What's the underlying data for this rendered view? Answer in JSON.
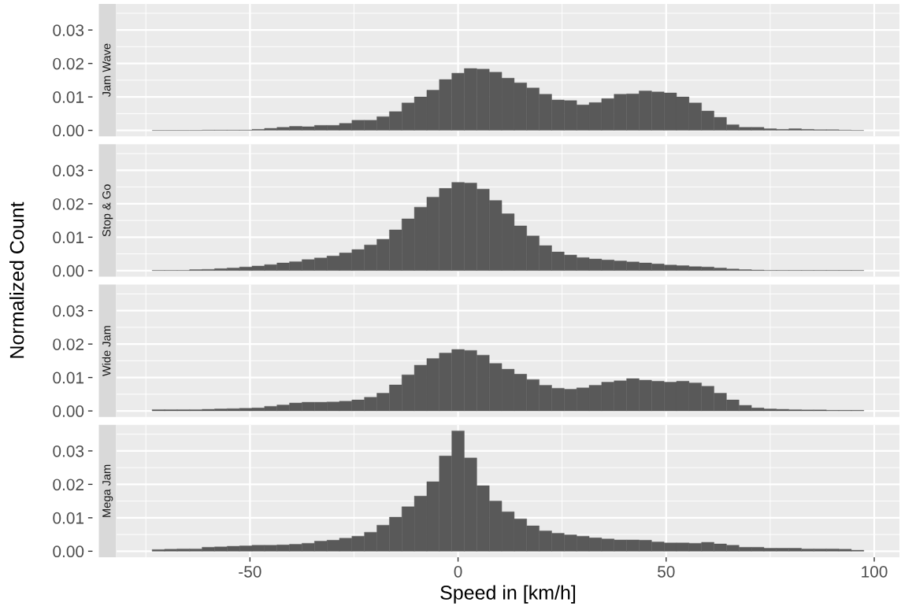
{
  "chart_data": [
    {
      "type": "histogram",
      "title": "Jam Wave",
      "ylabel": "Normalized Count",
      "color": "#595959",
      "grid": true,
      "tick_labels": "y",
      "bins": [
        -73.5,
        -70.5,
        -67.5,
        -64.5,
        -61.5,
        -58.5,
        -55.5,
        -52.5,
        -49.5,
        -46.5,
        -43.5,
        -40.5,
        -37.5,
        -34.5,
        -31.5,
        -28.5,
        -25.5,
        -22.5,
        -19.5,
        -16.5,
        -13.5,
        -10.5,
        -7.5,
        -4.5,
        -1.5,
        1.5,
        4.5,
        7.5,
        10.5,
        13.5,
        16.5,
        19.5,
        22.5,
        25.5,
        28.5,
        31.5,
        34.5,
        37.5,
        40.5,
        43.5,
        46.5,
        49.5,
        52.5,
        55.5,
        58.5,
        61.5,
        64.5,
        67.5,
        70.5,
        73.5,
        76.5,
        79.5,
        82.5,
        85.5,
        88.5,
        91.5,
        94.5,
        97.5
      ],
      "values": [
        0,
        0,
        0,
        0,
        0.0001,
        0.0001,
        0.0001,
        0.0001,
        0.0003,
        0.0006,
        0.0009,
        0.0012,
        0.0011,
        0.0015,
        0.0015,
        0.0021,
        0.003,
        0.003,
        0.0041,
        0.0056,
        0.0082,
        0.01,
        0.012,
        0.0152,
        0.0171,
        0.0185,
        0.0183,
        0.0174,
        0.0156,
        0.0142,
        0.0127,
        0.0108,
        0.0091,
        0.0089,
        0.0076,
        0.0083,
        0.0095,
        0.0108,
        0.0109,
        0.0118,
        0.0115,
        0.0112,
        0.01,
        0.0082,
        0.0058,
        0.0039,
        0.0017,
        0.0009,
        0.0009,
        0.0005,
        0.0003,
        0.0005,
        0.0003,
        0.0002,
        0.0002,
        0.0001,
        0
      ],
      "xlim": [
        -82.05,
        106.05
      ],
      "xticks": [
        -50,
        0,
        50,
        100
      ],
      "ylim": [
        -0.0018,
        0.0378
      ],
      "yticks": [
        {
          "value": 0,
          "label": "0.00"
        },
        {
          "value": 0.01,
          "label": "0.01"
        },
        {
          "value": 0.02,
          "label": "0.02"
        },
        {
          "value": 0.03,
          "label": "0.03"
        }
      ]
    },
    {
      "type": "histogram",
      "title": "Stop & Go",
      "color": "#595959",
      "grid": true,
      "tick_labels": "y",
      "bins": [
        -73.5,
        -70.5,
        -67.5,
        -64.5,
        -61.5,
        -58.5,
        -55.5,
        -52.5,
        -49.5,
        -46.5,
        -43.5,
        -40.5,
        -37.5,
        -34.5,
        -31.5,
        -28.5,
        -25.5,
        -22.5,
        -19.5,
        -16.5,
        -13.5,
        -10.5,
        -7.5,
        -4.5,
        -1.5,
        1.5,
        4.5,
        7.5,
        10.5,
        13.5,
        16.5,
        19.5,
        22.5,
        25.5,
        28.5,
        31.5,
        34.5,
        37.5,
        40.5,
        43.5,
        46.5,
        49.5,
        52.5,
        55.5,
        58.5,
        61.5,
        64.5,
        67.5,
        70.5,
        73.5,
        76.5,
        79.5,
        82.5,
        85.5,
        88.5,
        91.5,
        94.5,
        97.5
      ],
      "values": [
        0.0001,
        0.0001,
        0.0001,
        0.0003,
        0.0004,
        0.0006,
        0.0008,
        0.0011,
        0.0014,
        0.0018,
        0.0023,
        0.0027,
        0.0033,
        0.0038,
        0.0044,
        0.0053,
        0.0063,
        0.0077,
        0.0094,
        0.0122,
        0.0155,
        0.019,
        0.022,
        0.0246,
        0.0264,
        0.0262,
        0.0244,
        0.021,
        0.017,
        0.0134,
        0.0104,
        0.0075,
        0.0056,
        0.0047,
        0.0039,
        0.0035,
        0.0032,
        0.0029,
        0.0026,
        0.0023,
        0.002,
        0.0017,
        0.0015,
        0.0012,
        0.0011,
        0.0008,
        0.0005,
        0.0003,
        0.0002,
        0.0001,
        0.0001,
        0.0001,
        0.0001,
        0.0001,
        0.0001,
        0.0001,
        0.0001
      ],
      "xlim": [
        -82.05,
        106.05
      ],
      "xticks": [
        -50,
        0,
        50,
        100
      ],
      "ylim": [
        -0.0018,
        0.0378
      ],
      "yticks": [
        {
          "value": 0,
          "label": "0.00"
        },
        {
          "value": 0.01,
          "label": "0.01"
        },
        {
          "value": 0.02,
          "label": "0.02"
        },
        {
          "value": 0.03,
          "label": "0.03"
        }
      ]
    },
    {
      "type": "histogram",
      "title": "Wide Jam",
      "color": "#595959",
      "grid": true,
      "tick_labels": "y",
      "bins": [
        -73.5,
        -70.5,
        -67.5,
        -64.5,
        -61.5,
        -58.5,
        -55.5,
        -52.5,
        -49.5,
        -46.5,
        -43.5,
        -40.5,
        -37.5,
        -34.5,
        -31.5,
        -28.5,
        -25.5,
        -22.5,
        -19.5,
        -16.5,
        -13.5,
        -10.5,
        -7.5,
        -4.5,
        -1.5,
        1.5,
        4.5,
        7.5,
        10.5,
        13.5,
        16.5,
        19.5,
        22.5,
        25.5,
        28.5,
        31.5,
        34.5,
        37.5,
        40.5,
        43.5,
        46.5,
        49.5,
        52.5,
        55.5,
        58.5,
        61.5,
        64.5,
        67.5,
        70.5,
        73.5,
        76.5,
        79.5,
        82.5,
        85.5,
        88.5,
        91.5,
        94.5,
        97.5
      ],
      "values": [
        0.0004,
        0.0004,
        0.0004,
        0.0004,
        0.0005,
        0.0006,
        0.0007,
        0.0008,
        0.0009,
        0.0014,
        0.0018,
        0.0024,
        0.0026,
        0.0026,
        0.0027,
        0.0029,
        0.0033,
        0.0041,
        0.0053,
        0.0078,
        0.0108,
        0.0137,
        0.0157,
        0.0173,
        0.0184,
        0.0181,
        0.0167,
        0.0142,
        0.0125,
        0.011,
        0.0094,
        0.0077,
        0.0068,
        0.0065,
        0.0069,
        0.0077,
        0.0086,
        0.009,
        0.0097,
        0.0092,
        0.0089,
        0.0086,
        0.0089,
        0.0084,
        0.0074,
        0.0053,
        0.0033,
        0.0017,
        0.0009,
        0.0006,
        0.0005,
        0.0004,
        0.0003,
        0.0003,
        0.0002,
        0.0002,
        0.0002
      ],
      "xlim": [
        -82.05,
        106.05
      ],
      "xticks": [
        -50,
        0,
        50,
        100
      ],
      "ylim": [
        -0.0018,
        0.0378
      ],
      "yticks": [
        {
          "value": 0,
          "label": "0.00"
        },
        {
          "value": 0.01,
          "label": "0.01"
        },
        {
          "value": 0.02,
          "label": "0.02"
        },
        {
          "value": 0.03,
          "label": "0.03"
        }
      ]
    },
    {
      "type": "histogram",
      "title": "Mega Jam",
      "xlabel": "Speed in [km/h]",
      "color": "#595959",
      "grid": true,
      "bins": [
        -73.5,
        -70.5,
        -67.5,
        -64.5,
        -61.5,
        -58.5,
        -55.5,
        -52.5,
        -49.5,
        -46.5,
        -43.5,
        -40.5,
        -37.5,
        -34.5,
        -31.5,
        -28.5,
        -25.5,
        -22.5,
        -19.5,
        -16.5,
        -13.5,
        -10.5,
        -7.5,
        -4.5,
        -1.5,
        1.5,
        4.5,
        7.5,
        10.5,
        13.5,
        16.5,
        19.5,
        22.5,
        25.5,
        28.5,
        31.5,
        34.5,
        37.5,
        40.5,
        43.5,
        46.5,
        49.5,
        52.5,
        55.5,
        58.5,
        61.5,
        64.5,
        67.5,
        70.5,
        73.5,
        76.5,
        79.5,
        82.5,
        85.5,
        88.5,
        91.5,
        94.5,
        97.5
      ],
      "values": [
        0.0005,
        0.0006,
        0.0007,
        0.0007,
        0.0012,
        0.0013,
        0.0015,
        0.0016,
        0.0018,
        0.0018,
        0.0019,
        0.0021,
        0.0024,
        0.003,
        0.0033,
        0.0039,
        0.0045,
        0.0057,
        0.0078,
        0.0102,
        0.0133,
        0.0165,
        0.0208,
        0.0285,
        0.036,
        0.0279,
        0.0196,
        0.015,
        0.0118,
        0.0097,
        0.0076,
        0.0061,
        0.0054,
        0.0049,
        0.0045,
        0.004,
        0.0037,
        0.0034,
        0.0034,
        0.0033,
        0.0028,
        0.0025,
        0.0025,
        0.0024,
        0.0027,
        0.0022,
        0.0018,
        0.0012,
        0.0012,
        0.0009,
        0.0009,
        0.0009,
        0.0007,
        0.0007,
        0.0007,
        0.0006,
        0.0003
      ],
      "xlim": [
        -82.05,
        106.05
      ],
      "xticks": [
        -50,
        0,
        50,
        100
      ],
      "ylim": [
        -0.0018,
        0.0378
      ],
      "yticks": [
        {
          "value": 0,
          "label": "0.00"
        },
        {
          "value": 0.01,
          "label": "0.01"
        },
        {
          "value": 0.02,
          "label": "0.02"
        },
        {
          "value": 0.03,
          "label": "0.03"
        }
      ]
    }
  ]
}
